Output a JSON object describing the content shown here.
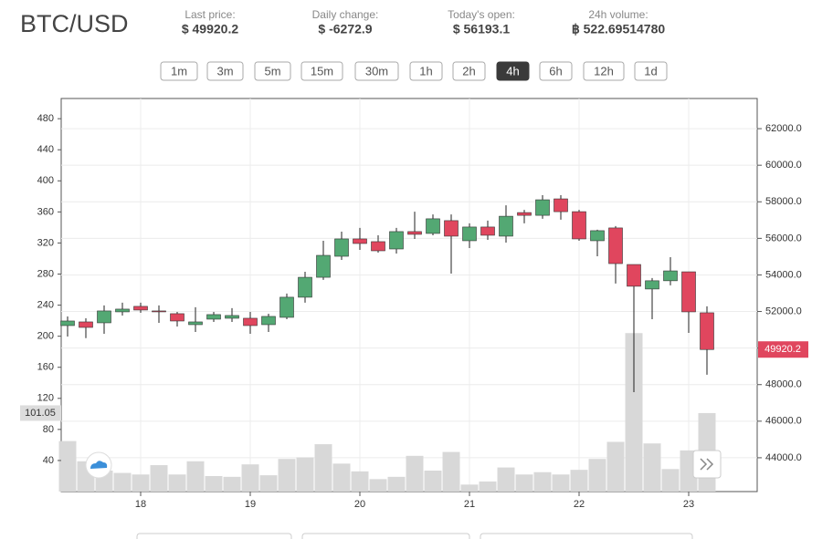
{
  "header": {
    "symbol": "BTC/USD",
    "stats": [
      {
        "label": "Last price:",
        "value": "$ 49920.2"
      },
      {
        "label": "Daily change:",
        "value": "$ -6272.9"
      },
      {
        "label": "Today's open:",
        "value": "$ 56193.1"
      },
      {
        "label": "24h volume:",
        "value": "฿ 522.69514780"
      }
    ]
  },
  "intervals": {
    "buttons": [
      "1m",
      "3m",
      "5m",
      "15m",
      "30m",
      "1h",
      "2h",
      "4h",
      "6h",
      "12h",
      "1d"
    ],
    "active_index": 7
  },
  "chart_data": {
    "type": "candlestick",
    "categories": [
      null,
      null,
      null,
      null,
      "18",
      null,
      null,
      null,
      null,
      null,
      "19",
      null,
      null,
      null,
      null,
      null,
      "20",
      null,
      null,
      null,
      null,
      null,
      "21",
      null,
      null,
      null,
      null,
      null,
      "22",
      null,
      null,
      null,
      null,
      null,
      "23",
      null
    ],
    "open": [
      51230,
      51430,
      51380,
      51980,
      52280,
      52030,
      51880,
      51280,
      51580,
      51630,
      51630,
      51280,
      51680,
      52780,
      53870,
      55020,
      55970,
      55820,
      55420,
      56370,
      56270,
      56970,
      55870,
      56620,
      56120,
      57410,
      57260,
      58160,
      57460,
      55870,
      56570,
      54570,
      53230,
      53680,
      54170,
      51930
    ],
    "high": [
      51730,
      51630,
      52330,
      52480,
      52480,
      52330,
      51980,
      52230,
      51980,
      52180,
      51980,
      51880,
      52980,
      54170,
      55870,
      56370,
      56570,
      56170,
      56570,
      57460,
      57310,
      57310,
      56820,
      56970,
      57810,
      57560,
      58360,
      58360,
      57560,
      56470,
      56670,
      54570,
      53830,
      54970,
      54170,
      52280
    ],
    "low": [
      50630,
      50540,
      50780,
      51780,
      51930,
      51380,
      51180,
      50880,
      51430,
      51430,
      50780,
      50880,
      51580,
      52480,
      53730,
      54820,
      55370,
      55220,
      55170,
      55970,
      56170,
      54070,
      55470,
      55920,
      55770,
      56820,
      57070,
      57020,
      55870,
      55020,
      53530,
      47590,
      51580,
      53430,
      50830,
      48540
    ],
    "close": [
      51480,
      51130,
      52030,
      52130,
      52080,
      51980,
      51480,
      51430,
      51830,
      51780,
      51230,
      51730,
      52780,
      53870,
      55070,
      55970,
      55720,
      55320,
      56370,
      56220,
      57070,
      56120,
      56620,
      56170,
      57210,
      57260,
      58110,
      57460,
      55970,
      56420,
      54620,
      53380,
      53680,
      54220,
      51980,
      49920.2
    ],
    "volume": [
      65,
      39,
      27,
      24,
      22,
      34,
      22,
      39,
      20,
      19,
      35,
      21,
      42,
      44,
      61,
      36,
      26,
      16,
      19,
      46,
      27,
      51,
      9,
      13,
      31,
      22,
      25,
      22,
      28,
      42,
      64,
      204,
      62,
      29,
      53,
      101.05
    ],
    "up_color": "#53a873",
    "down_color": "#e0465e",
    "volume_color": "#d8d8d8",
    "ylim": [
      42150,
      63650
    ],
    "yticks": [
      {
        "value": 44000,
        "label": "44000.0"
      },
      {
        "value": 46000,
        "label": "46000.0"
      },
      {
        "value": 48000,
        "label": "48000.0"
      },
      {
        "value": 50000,
        "label": "50000.0"
      },
      {
        "value": 52000,
        "label": "52000.0"
      },
      {
        "value": 54000,
        "label": "54000.0"
      },
      {
        "value": 56000,
        "label": "56000.0"
      },
      {
        "value": 58000,
        "label": "58000.0"
      },
      {
        "value": 60000,
        "label": "60000.0"
      },
      {
        "value": 62000,
        "label": "62000.0"
      }
    ],
    "y2lim": [
      0,
      506
    ],
    "y2ticks": [
      40,
      80,
      120,
      160,
      200,
      240,
      280,
      320,
      360,
      400,
      440,
      480
    ],
    "grid": true
  }
}
